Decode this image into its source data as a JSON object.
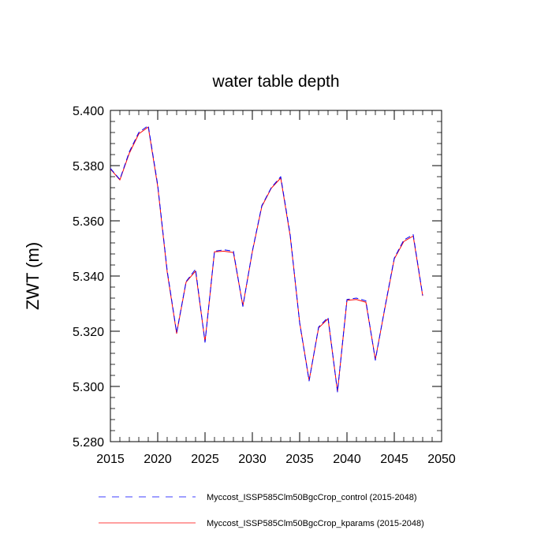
{
  "chart_data": {
    "type": "line",
    "title": "water table depth",
    "xlabel": "",
    "ylabel": "ZWT  (m)",
    "xlim": [
      2015,
      2050
    ],
    "ylim": [
      5.28,
      5.4
    ],
    "xticks": [
      2015,
      2020,
      2025,
      2030,
      2035,
      2040,
      2045,
      2050
    ],
    "xtick_labels": [
      "2015",
      "2020",
      "2025",
      "2030",
      "2035",
      "2040",
      "2045",
      "2050"
    ],
    "yticks": [
      5.28,
      5.3,
      5.32,
      5.34,
      5.36,
      5.38,
      5.4
    ],
    "ytick_labels": [
      "5.280",
      "5.300",
      "5.320",
      "5.340",
      "5.360",
      "5.380",
      "5.400"
    ],
    "grid": false,
    "legend_position": "bottom",
    "x": [
      2015,
      2016,
      2017,
      2018,
      2019,
      2020,
      2021,
      2022,
      2023,
      2024,
      2025,
      2026,
      2027,
      2028,
      2029,
      2030,
      2031,
      2032,
      2033,
      2034,
      2035,
      2036,
      2037,
      2038,
      2039,
      2040,
      2041,
      2042,
      2043,
      2044,
      2045,
      2046,
      2047,
      2048
    ],
    "series": [
      {
        "name": "Myccost_ISSP585Clm50BgcCrop_control (2015-2048)",
        "color": "#0000ff",
        "dash": "dashed",
        "values": [
          5.379,
          5.375,
          5.385,
          5.392,
          5.3945,
          5.373,
          5.342,
          5.3195,
          5.338,
          5.3425,
          5.316,
          5.349,
          5.3495,
          5.349,
          5.329,
          5.349,
          5.3655,
          5.372,
          5.376,
          5.355,
          5.323,
          5.302,
          5.3215,
          5.325,
          5.298,
          5.3315,
          5.332,
          5.331,
          5.3095,
          5.3285,
          5.3465,
          5.353,
          5.355,
          5.333
        ]
      },
      {
        "name": "Myccost_ISSP585Clm50BgcCrop_kparams (2015-2048)",
        "color": "#ff0000",
        "dash": "solid",
        "values": [
          5.3788,
          5.3748,
          5.3845,
          5.3915,
          5.394,
          5.3725,
          5.3415,
          5.3192,
          5.3378,
          5.3418,
          5.3162,
          5.3488,
          5.349,
          5.3485,
          5.3292,
          5.3488,
          5.3652,
          5.3718,
          5.3755,
          5.3545,
          5.3232,
          5.3022,
          5.3212,
          5.3245,
          5.2982,
          5.3312,
          5.3315,
          5.3305,
          5.3098,
          5.3282,
          5.3462,
          5.3525,
          5.3545,
          5.3328
        ]
      }
    ]
  }
}
